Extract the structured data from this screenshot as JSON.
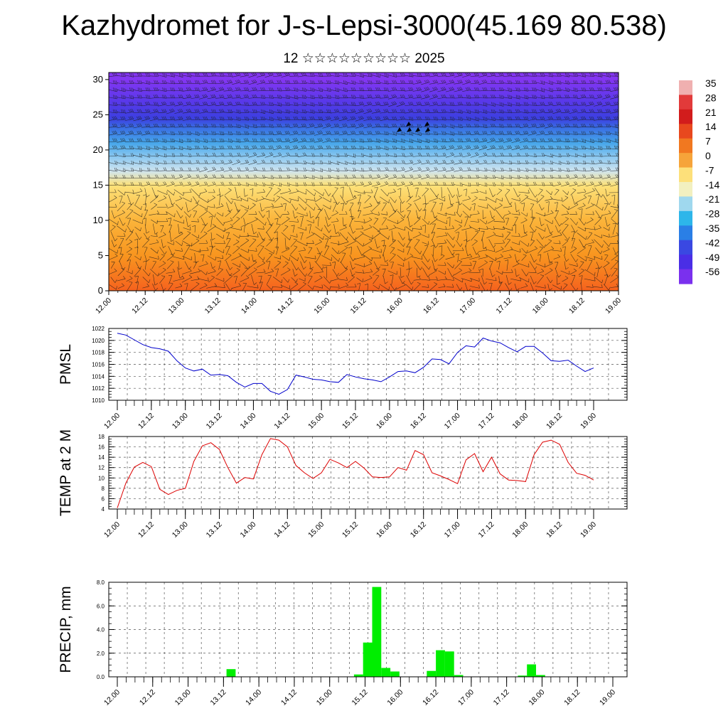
{
  "title": "Kazhydromet for J-s-Lepsi-3000(45.169 80.538)",
  "subtitle": "12 ☆☆☆☆☆☆☆☆☆ 2025",
  "time_ticks": [
    "12.00",
    "12.12",
    "13.00",
    "13.12",
    "14.00",
    "14.12",
    "15.00",
    "15.12",
    "16.00",
    "16.12",
    "17.00",
    "17.12",
    "18.00",
    "18.12",
    "19.00"
  ],
  "chart_data": [
    {
      "type": "heatmap",
      "name": "temperature-wind-cross-section",
      "ylim": [
        0,
        31
      ],
      "yticks": [
        0,
        5,
        10,
        15,
        20,
        25,
        30
      ],
      "x_ticks_ref": "time_ticks",
      "colorbar_labels": [
        "35",
        "28",
        "21",
        "14",
        "7",
        "0",
        "-7",
        "-14",
        "-21",
        "-28",
        "-35",
        "-42",
        "-49",
        "-56"
      ],
      "colorbar_colors": [
        "#f0b0b0",
        "#e23a3a",
        "#d21c1c",
        "#e8481e",
        "#f17820",
        "#f6a43a",
        "#fde07a",
        "#f2f0c0",
        "#9fd8ee",
        "#2db6ea",
        "#2a7fe6",
        "#3a48e2",
        "#4a2ee6",
        "#7a30ee"
      ],
      "level_colors": {
        "0": "#f5621e",
        "5": "#f8951f",
        "10": "#fbb43a",
        "15": "#fde27a",
        "17": "#cfe4ef",
        "19": "#8cc8f0",
        "21": "#46a6ea",
        "23": "#3a72e4",
        "24.5": "#3c3fe0",
        "27": "#5a38ea",
        "30": "#8436f2"
      }
    },
    {
      "type": "line",
      "ylabel": "PMSL",
      "ylim": [
        1010,
        1022
      ],
      "yticks": [
        1010,
        1012,
        1014,
        1016,
        1018,
        1020,
        1022
      ],
      "color": "#0000cc",
      "x_ticks_ref": "time_ticks",
      "values": [
        1021.2,
        1020.9,
        1020.1,
        1019.3,
        1018.8,
        1018.6,
        1018.2,
        1016.6,
        1015.4,
        1014.9,
        1015.2,
        1014.2,
        1014.3,
        1014.1,
        1013.0,
        1012.2,
        1012.8,
        1012.8,
        1011.5,
        1011.0,
        1011.8,
        1014.2,
        1013.9,
        1013.5,
        1013.4,
        1013.1,
        1013.0,
        1014.3,
        1013.9,
        1013.6,
        1013.4,
        1013.1,
        1013.9,
        1014.8,
        1014.9,
        1014.6,
        1015.5,
        1016.9,
        1016.8,
        1016.1,
        1018.0,
        1019.1,
        1018.9,
        1020.4,
        1019.9,
        1019.6,
        1018.8,
        1018.1,
        1019.0,
        1019.0,
        1017.9,
        1016.6,
        1016.5,
        1016.7,
        1015.7,
        1014.8,
        1015.4
      ]
    },
    {
      "type": "line",
      "ylabel": "TEMP at 2 M",
      "ylim": [
        4,
        18
      ],
      "yticks": [
        4,
        6,
        8,
        10,
        12,
        14,
        16,
        18
      ],
      "color": "#dd0000",
      "x_ticks_ref": "time_ticks",
      "values": [
        4.2,
        9.0,
        12.1,
        13.0,
        12.2,
        7.8,
        6.8,
        7.6,
        8.0,
        13.2,
        16.2,
        16.8,
        15.5,
        12.0,
        9.0,
        10.1,
        9.8,
        14.5,
        17.6,
        17.3,
        16.0,
        12.4,
        11.0,
        9.9,
        11.0,
        13.6,
        12.9,
        12.0,
        13.2,
        11.9,
        10.2,
        10.1,
        10.2,
        12.0,
        11.5,
        15.3,
        14.5,
        11.0,
        10.4,
        9.7,
        8.9,
        13.5,
        14.7,
        11.2,
        14.0,
        10.8,
        9.6,
        9.5,
        9.3,
        14.5,
        16.9,
        17.3,
        16.5,
        13.0,
        10.9,
        10.5,
        9.6
      ]
    },
    {
      "type": "bar",
      "ylabel": "PRECIP, mm",
      "ylim": [
        0,
        8
      ],
      "yticks": [
        "0.0",
        "2.0",
        "4.0",
        "6.0",
        "8.0"
      ],
      "color": "#00ee00",
      "x_ticks_ref": "time_ticks",
      "values": [
        0,
        0,
        0,
        0,
        0,
        0,
        0,
        0,
        0,
        0,
        0,
        0,
        0.65,
        0,
        0,
        0,
        0,
        0,
        0,
        0,
        0,
        0,
        0,
        0,
        0,
        0,
        0.2,
        2.9,
        7.6,
        0.75,
        0.45,
        0,
        0,
        0,
        0.5,
        2.25,
        2.15,
        0.15,
        0,
        0,
        0,
        0,
        0,
        0,
        0.1,
        1.05,
        0.15,
        0,
        0,
        0,
        0,
        0,
        0,
        0,
        0,
        0
      ]
    }
  ]
}
